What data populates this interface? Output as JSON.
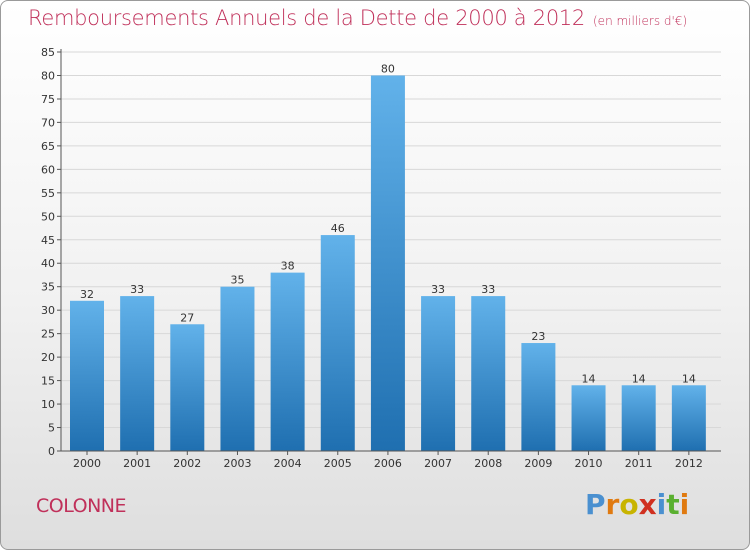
{
  "title": "Remboursements Annuels de la Dette de 2000 à 2012",
  "unit": "(en milliers d'€)",
  "commune": "COLONNE",
  "logo": {
    "letters": [
      "P",
      "r",
      "o",
      "x",
      "i",
      "t",
      "i"
    ],
    "colors": [
      "#4a90d0",
      "#e07a10",
      "#c8b400",
      "#d03020",
      "#4a90d0",
      "#5ab030",
      "#e07a10"
    ]
  },
  "colors": {
    "bar": "#3a8fd4",
    "bar_light": "#62b2ea",
    "bar_dark": "#1f6fb0",
    "title": "#c0305a",
    "grid": "#d8d8d8"
  },
  "chart_data": {
    "type": "bar",
    "title": "Remboursements Annuels de la Dette de 2000 à 2012",
    "subtitle": "(en milliers d'€)",
    "xlabel": "",
    "ylabel": "",
    "categories": [
      "2000",
      "2001",
      "2002",
      "2003",
      "2004",
      "2005",
      "2006",
      "2007",
      "2008",
      "2009",
      "2010",
      "2011",
      "2012"
    ],
    "values": [
      32,
      33,
      27,
      35,
      38,
      46,
      80,
      33,
      33,
      23,
      14,
      14,
      14
    ],
    "ylim": [
      0,
      85
    ],
    "yticks": [
      0,
      5,
      10,
      15,
      20,
      25,
      30,
      35,
      40,
      45,
      50,
      55,
      60,
      65,
      70,
      75,
      80,
      85
    ],
    "grid": true,
    "legend": "none"
  }
}
